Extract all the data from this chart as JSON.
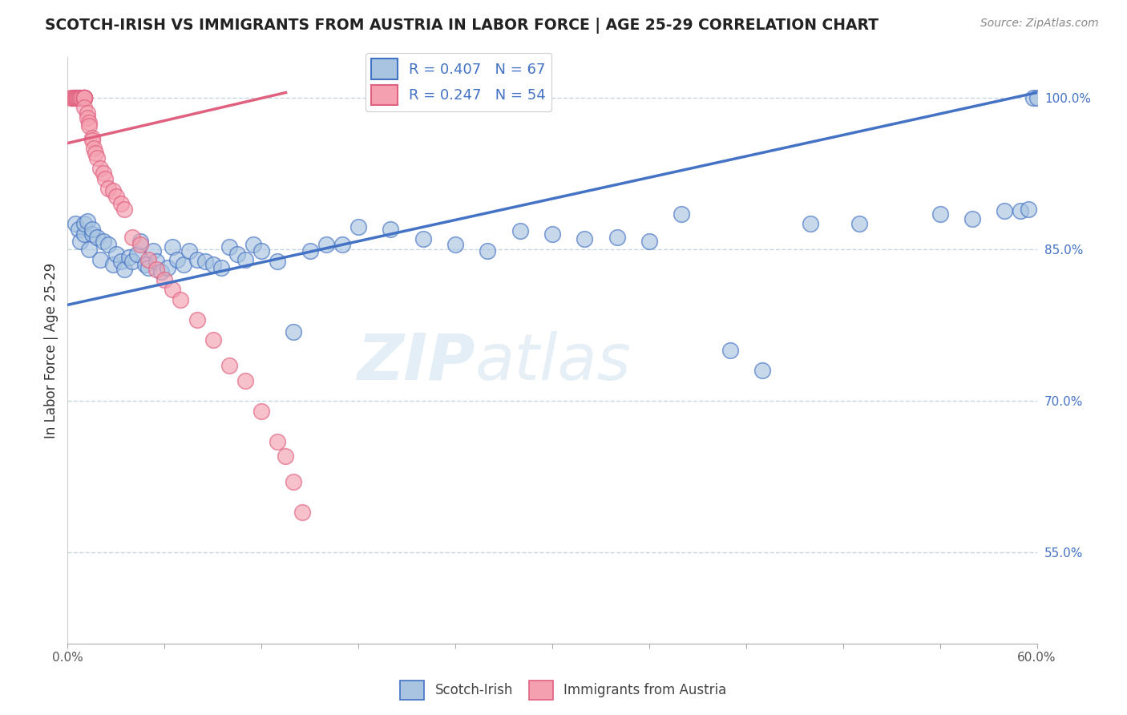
{
  "title": "SCOTCH-IRISH VS IMMIGRANTS FROM AUSTRIA IN LABOR FORCE | AGE 25-29 CORRELATION CHART",
  "source": "Source: ZipAtlas.com",
  "ylabel": "In Labor Force | Age 25-29",
  "xlim": [
    0.0,
    0.6
  ],
  "ylim": [
    0.46,
    1.04
  ],
  "x_ticks": [
    0.0,
    0.06,
    0.12,
    0.18,
    0.24,
    0.3,
    0.36,
    0.42,
    0.48,
    0.54,
    0.6
  ],
  "x_tick_labels": [
    "0.0%",
    "",
    "",
    "",
    "",
    "",
    "",
    "",
    "",
    "",
    "60.0%"
  ],
  "y_tick_labels": [
    "55.0%",
    "70.0%",
    "85.0%",
    "100.0%"
  ],
  "y_ticks": [
    0.55,
    0.7,
    0.85,
    1.0
  ],
  "blue_R": 0.407,
  "blue_N": 67,
  "pink_R": 0.247,
  "pink_N": 54,
  "blue_color": "#a8c4e0",
  "pink_color": "#f4a0b0",
  "blue_line_color": "#4472c4",
  "pink_line_color": "#e06080",
  "blue_trend_x0": 0.0,
  "blue_trend_y0": 0.795,
  "blue_trend_x1": 0.6,
  "blue_trend_y1": 1.005,
  "pink_trend_x0": 0.0,
  "pink_trend_y0": 0.955,
  "pink_trend_x1": 0.135,
  "pink_trend_y1": 1.005,
  "blue_scatter_x": [
    0.005,
    0.007,
    0.008,
    0.01,
    0.01,
    0.012,
    0.013,
    0.015,
    0.015,
    0.018,
    0.02,
    0.022,
    0.025,
    0.028,
    0.03,
    0.033,
    0.035,
    0.038,
    0.04,
    0.043,
    0.045,
    0.048,
    0.05,
    0.053,
    0.055,
    0.058,
    0.062,
    0.065,
    0.068,
    0.072,
    0.075,
    0.08,
    0.085,
    0.09,
    0.095,
    0.1,
    0.105,
    0.11,
    0.115,
    0.12,
    0.13,
    0.14,
    0.15,
    0.16,
    0.17,
    0.18,
    0.2,
    0.22,
    0.24,
    0.26,
    0.28,
    0.3,
    0.32,
    0.34,
    0.36,
    0.38,
    0.41,
    0.43,
    0.46,
    0.49,
    0.54,
    0.56,
    0.58,
    0.59,
    0.595,
    0.598,
    0.6
  ],
  "blue_scatter_y": [
    0.875,
    0.87,
    0.858,
    0.865,
    0.875,
    0.878,
    0.85,
    0.865,
    0.87,
    0.862,
    0.84,
    0.858,
    0.855,
    0.835,
    0.845,
    0.838,
    0.83,
    0.842,
    0.838,
    0.845,
    0.858,
    0.835,
    0.832,
    0.848,
    0.838,
    0.828,
    0.832,
    0.852,
    0.84,
    0.835,
    0.848,
    0.84,
    0.838,
    0.835,
    0.832,
    0.852,
    0.845,
    0.84,
    0.855,
    0.848,
    0.838,
    0.768,
    0.848,
    0.855,
    0.855,
    0.872,
    0.87,
    0.86,
    0.855,
    0.848,
    0.868,
    0.865,
    0.86,
    0.862,
    0.858,
    0.885,
    0.75,
    0.73,
    0.875,
    0.875,
    0.885,
    0.88,
    0.888,
    0.888,
    0.89,
    1.0,
    1.0
  ],
  "pink_scatter_x": [
    0.002,
    0.003,
    0.004,
    0.005,
    0.005,
    0.006,
    0.006,
    0.007,
    0.007,
    0.008,
    0.008,
    0.009,
    0.01,
    0.01,
    0.01,
    0.01,
    0.01,
    0.01,
    0.01,
    0.01,
    0.01,
    0.012,
    0.012,
    0.013,
    0.013,
    0.015,
    0.015,
    0.016,
    0.017,
    0.018,
    0.02,
    0.022,
    0.023,
    0.025,
    0.028,
    0.03,
    0.033,
    0.035,
    0.04,
    0.045,
    0.05,
    0.055,
    0.06,
    0.065,
    0.07,
    0.08,
    0.09,
    0.1,
    0.11,
    0.12,
    0.13,
    0.135,
    0.14,
    0.145
  ],
  "pink_scatter_y": [
    1.0,
    1.0,
    1.0,
    1.0,
    1.0,
    1.0,
    1.0,
    1.0,
    1.0,
    1.0,
    1.0,
    1.0,
    1.0,
    1.0,
    1.0,
    1.0,
    1.0,
    1.0,
    1.0,
    1.0,
    0.99,
    0.985,
    0.98,
    0.975,
    0.972,
    0.96,
    0.958,
    0.95,
    0.945,
    0.94,
    0.93,
    0.925,
    0.92,
    0.91,
    0.908,
    0.902,
    0.895,
    0.89,
    0.862,
    0.855,
    0.84,
    0.83,
    0.82,
    0.81,
    0.8,
    0.78,
    0.76,
    0.735,
    0.72,
    0.69,
    0.66,
    0.645,
    0.62,
    0.59
  ]
}
